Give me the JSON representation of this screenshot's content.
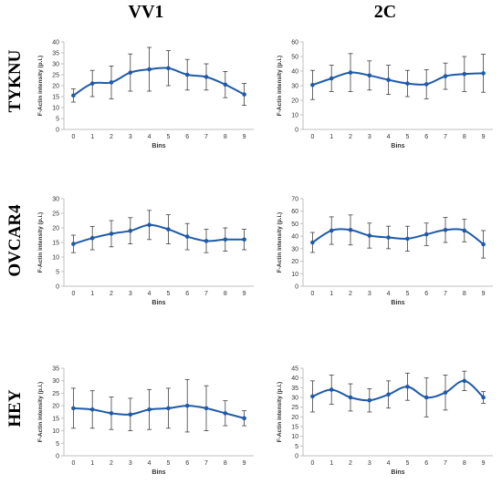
{
  "columns": [
    "VV1",
    "2C"
  ],
  "rows": [
    "TYKNU",
    "OVCAR4",
    "HEY"
  ],
  "colors": {
    "series": "#1f5aa8",
    "axis": "#bfbfbf",
    "error": "#404040"
  },
  "chart_data": [
    {
      "type": "line",
      "row": "TYKNU",
      "column": "VV1",
      "xlabel": "Bins",
      "ylabel": "F-Actin intensity (p.i.)",
      "x": [
        0,
        1,
        2,
        3,
        4,
        5,
        6,
        7,
        8,
        9
      ],
      "values": [
        15.5,
        21,
        21.5,
        26,
        27.5,
        28,
        25,
        24,
        20.5,
        16
      ],
      "errors": [
        3,
        6,
        7.5,
        8.5,
        10,
        8,
        7,
        6,
        6,
        5
      ],
      "ylim": [
        0,
        40
      ],
      "yticks": [
        0,
        5,
        10,
        15,
        20,
        25,
        30,
        35,
        40
      ]
    },
    {
      "type": "line",
      "row": "TYKNU",
      "column": "2C",
      "xlabel": "Bins",
      "ylabel": "F-Actin intensity (p.i.)",
      "x": [
        0,
        1,
        2,
        3,
        4,
        5,
        6,
        7,
        8,
        9
      ],
      "values": [
        30.5,
        35,
        39,
        37,
        34,
        31.5,
        31,
        36.5,
        38,
        38.5
      ],
      "errors": [
        10,
        9,
        13,
        10,
        10,
        9,
        10,
        9,
        12,
        13
      ],
      "ylim": [
        0,
        60
      ],
      "yticks": [
        0,
        10,
        20,
        30,
        40,
        50,
        60
      ]
    },
    {
      "type": "line",
      "row": "OVCAR4",
      "column": "VV1",
      "xlabel": "Bins",
      "ylabel": "F-Actin intensity (p.i.)",
      "x": [
        0,
        1,
        2,
        3,
        4,
        5,
        6,
        7,
        8,
        9
      ],
      "values": [
        14.5,
        16.5,
        18,
        19,
        21,
        19.5,
        17,
        15.5,
        16,
        16
      ],
      "errors": [
        3,
        4,
        4.5,
        4.5,
        5,
        5,
        4.5,
        4,
        4,
        3.5
      ],
      "ylim": [
        0,
        30
      ],
      "yticks": [
        0,
        5,
        10,
        15,
        20,
        25,
        30
      ]
    },
    {
      "type": "line",
      "row": "OVCAR4",
      "column": "2C",
      "xlabel": "Bins",
      "ylabel": "F-Actin intensity (p.i.)",
      "x": [
        0,
        1,
        2,
        3,
        4,
        5,
        6,
        7,
        8,
        9
      ],
      "values": [
        35,
        44.5,
        45,
        40.5,
        39,
        38,
        41.5,
        45,
        44.5,
        33.5
      ],
      "errors": [
        8,
        11,
        12,
        10,
        9,
        10,
        9,
        10,
        9,
        11
      ],
      "ylim": [
        0,
        70
      ],
      "yticks": [
        0,
        10,
        20,
        30,
        40,
        50,
        60,
        70
      ]
    },
    {
      "type": "line",
      "row": "HEY",
      "column": "VV1",
      "xlabel": "Bins",
      "ylabel": "F-Actin intensity (p.i.)",
      "x": [
        0,
        1,
        2,
        3,
        4,
        5,
        6,
        7,
        8,
        9
      ],
      "values": [
        19,
        18.5,
        17,
        16.5,
        18.5,
        19,
        20,
        19,
        17,
        15
      ],
      "errors": [
        8,
        7.5,
        6.5,
        6.5,
        8,
        8,
        10.5,
        9,
        5,
        3
      ],
      "ylim": [
        0,
        35
      ],
      "yticks": [
        0,
        5,
        10,
        15,
        20,
        25,
        30,
        35
      ]
    },
    {
      "type": "line",
      "row": "HEY",
      "column": "2C",
      "xlabel": "Bins",
      "ylabel": "F-Actin intensity (p.i.)",
      "x": [
        0,
        1,
        2,
        3,
        4,
        5,
        6,
        7,
        8,
        9
      ],
      "values": [
        30.5,
        34,
        30,
        28.5,
        31.5,
        35.5,
        30,
        32.5,
        38.5,
        30
      ],
      "errors": [
        8,
        7.5,
        7,
        6,
        7,
        7,
        10,
        9,
        5,
        3
      ],
      "ylim": [
        0,
        45
      ],
      "yticks": [
        0,
        5,
        10,
        15,
        20,
        25,
        30,
        35,
        40,
        45
      ]
    }
  ]
}
